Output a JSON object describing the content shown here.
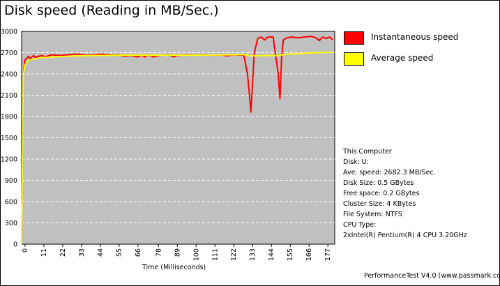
{
  "title": "Disk speed (Reading in MB/Sec.)",
  "legend": {
    "items": [
      {
        "label": "Instantaneous speed",
        "color": "#ff0000"
      },
      {
        "label": "Average speed",
        "color": "#ffff00"
      }
    ]
  },
  "info": {
    "lines": [
      "This Computer",
      "Disk: U:",
      "Ave. speed: 2682.3 MB/Sec.",
      "Disk Size: 0.5 GBytes",
      "Free space: 0.2 GBytes",
      "Cluster Size: 4 KBytes",
      "File System: NTFS",
      "CPU Type:",
      "2xIntel(R) Pentium(R) 4 CPU 3.20GHz"
    ]
  },
  "footer": "PerformanceTest V4.0 (www.passmark.com)",
  "chart_data": {
    "type": "line",
    "title": "Disk speed (Reading in MB/Sec.)",
    "xlabel": "Time (Milliseconds)",
    "ylabel": "",
    "xlim": [
      -2,
      181
    ],
    "ylim": [
      0,
      3000
    ],
    "x_ticks": [
      0,
      11,
      22,
      33,
      44,
      55,
      66,
      78,
      89,
      100,
      111,
      122,
      133,
      144,
      155,
      166,
      177
    ],
    "y_ticks": [
      0,
      300,
      600,
      900,
      1200,
      1500,
      1800,
      2100,
      2400,
      2700,
      3000
    ],
    "grid": "horizontal dashed",
    "background": "#c0c0c0",
    "series": [
      {
        "name": "Instantaneous speed",
        "color": "#ff0000",
        "points": [
          [
            -2,
            0
          ],
          [
            -1,
            2400
          ],
          [
            0,
            2600
          ],
          [
            1,
            2620
          ],
          [
            2,
            2650
          ],
          [
            3,
            2610
          ],
          [
            4,
            2640
          ],
          [
            5,
            2660
          ],
          [
            6,
            2630
          ],
          [
            8,
            2650
          ],
          [
            10,
            2660
          ],
          [
            12,
            2640
          ],
          [
            14,
            2660
          ],
          [
            16,
            2670
          ],
          [
            20,
            2660
          ],
          [
            25,
            2670
          ],
          [
            30,
            2680
          ],
          [
            35,
            2665
          ],
          [
            40,
            2670
          ],
          [
            45,
            2680
          ],
          [
            50,
            2665
          ],
          [
            55,
            2670
          ],
          [
            58,
            2650
          ],
          [
            62,
            2660
          ],
          [
            66,
            2640
          ],
          [
            68,
            2665
          ],
          [
            70,
            2640
          ],
          [
            72,
            2670
          ],
          [
            75,
            2640
          ],
          [
            78,
            2660
          ],
          [
            84,
            2670
          ],
          [
            87,
            2640
          ],
          [
            89,
            2660
          ],
          [
            95,
            2670
          ],
          [
            100,
            2665
          ],
          [
            105,
            2670
          ],
          [
            111,
            2665
          ],
          [
            115,
            2670
          ],
          [
            118,
            2655
          ],
          [
            122,
            2670
          ],
          [
            127,
            2665
          ],
          [
            128,
            2650
          ],
          [
            130,
            2400
          ],
          [
            131,
            2150
          ],
          [
            132,
            1860
          ],
          [
            134,
            2700
          ],
          [
            136,
            2900
          ],
          [
            138,
            2920
          ],
          [
            140,
            2880
          ],
          [
            142,
            2920
          ],
          [
            145,
            2920
          ],
          [
            148,
            2400
          ],
          [
            149,
            2050
          ],
          [
            150,
            2640
          ],
          [
            151,
            2880
          ],
          [
            153,
            2910
          ],
          [
            156,
            2920
          ],
          [
            160,
            2910
          ],
          [
            163,
            2920
          ],
          [
            167,
            2930
          ],
          [
            170,
            2910
          ],
          [
            172,
            2870
          ],
          [
            174,
            2920
          ],
          [
            176,
            2900
          ],
          [
            178,
            2920
          ],
          [
            180,
            2880
          ]
        ]
      },
      {
        "name": "Average speed",
        "color": "#ffff00",
        "points": [
          [
            -2,
            0
          ],
          [
            -1,
            2400
          ],
          [
            0,
            2530
          ],
          [
            2,
            2590
          ],
          [
            5,
            2610
          ],
          [
            10,
            2630
          ],
          [
            20,
            2645
          ],
          [
            30,
            2655
          ],
          [
            40,
            2660
          ],
          [
            60,
            2665
          ],
          [
            80,
            2665
          ],
          [
            100,
            2665
          ],
          [
            120,
            2670
          ],
          [
            128,
            2672
          ],
          [
            131,
            2660
          ],
          [
            135,
            2655
          ],
          [
            140,
            2660
          ],
          [
            148,
            2660
          ],
          [
            152,
            2675
          ],
          [
            160,
            2685
          ],
          [
            170,
            2700
          ],
          [
            180,
            2705
          ]
        ]
      }
    ]
  }
}
